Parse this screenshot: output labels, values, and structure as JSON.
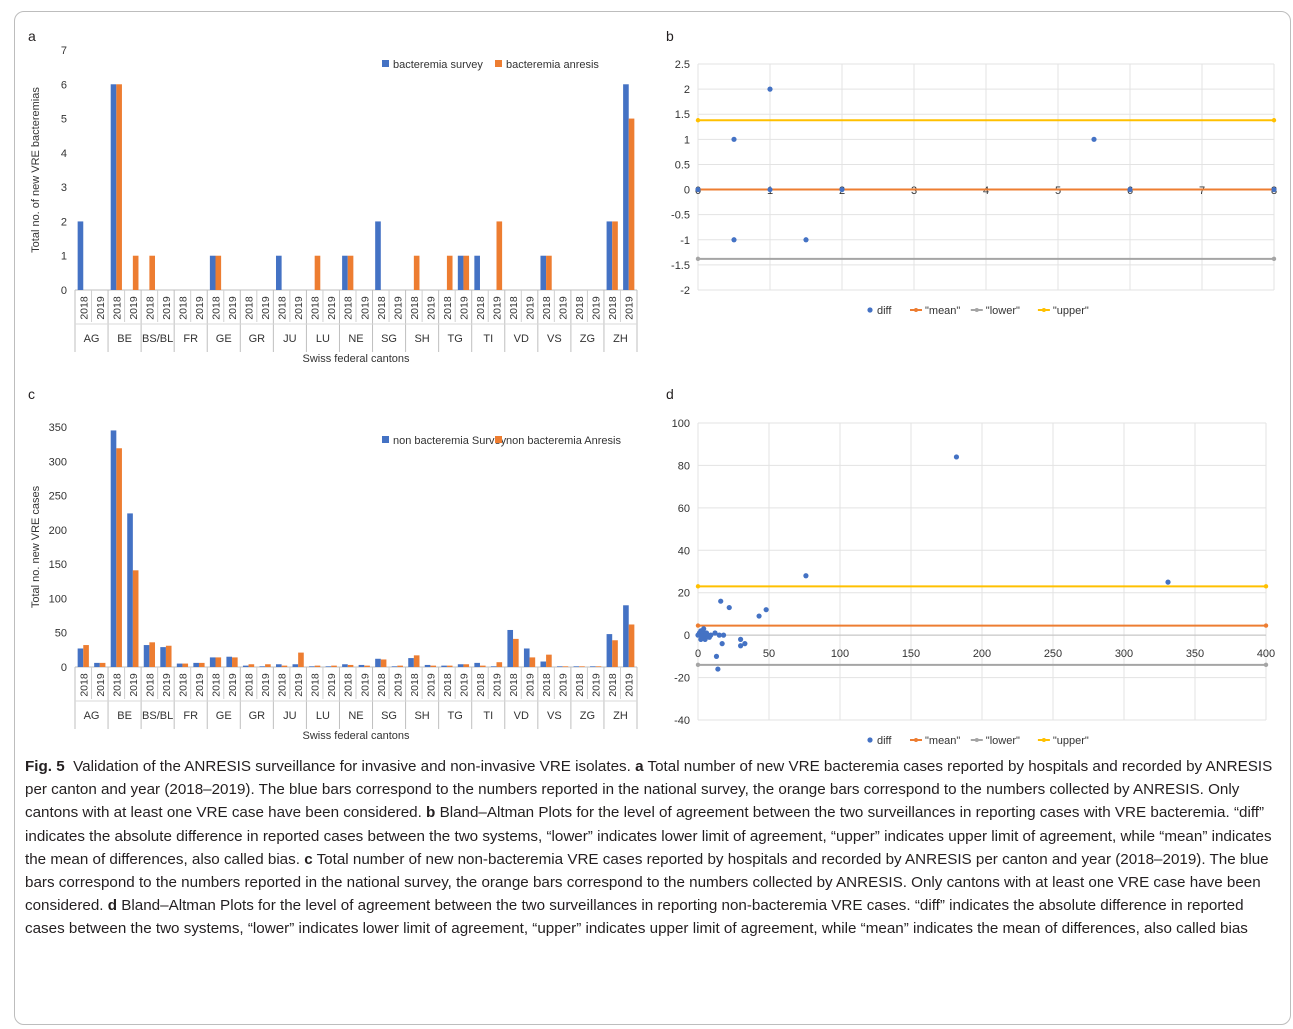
{
  "panels": {
    "a": {
      "label": "a",
      "chart_data": {
        "type": "bar",
        "ylabel": "Total no. of new VRE bacteremias",
        "xlabel": "Swiss federal cantons",
        "ylim": [
          0,
          7
        ],
        "yticks": [
          0,
          1,
          2,
          3,
          4,
          5,
          6,
          7
        ],
        "groups": [
          "AG",
          "BE",
          "BS/BL",
          "FR",
          "GE",
          "GR",
          "JU",
          "LU",
          "NE",
          "SG",
          "SH",
          "TG",
          "TI",
          "VD",
          "VS",
          "ZG",
          "ZH"
        ],
        "years": [
          "2018",
          "2019"
        ],
        "series": [
          {
            "name": "bacteremia survey",
            "color": "#4472c4",
            "values": [
              [
                2,
                0
              ],
              [
                6,
                0
              ],
              [
                0,
                0
              ],
              [
                0,
                0
              ],
              [
                1,
                0
              ],
              [
                0,
                0
              ],
              [
                1,
                0
              ],
              [
                0,
                0
              ],
              [
                1,
                0
              ],
              [
                2,
                0
              ],
              [
                0,
                0
              ],
              [
                0,
                1
              ],
              [
                1,
                0
              ],
              [
                0,
                0
              ],
              [
                1,
                0
              ],
              [
                0,
                0
              ],
              [
                2,
                6
              ]
            ]
          },
          {
            "name": "bacteremia anresis",
            "color": "#ed7d31",
            "values": [
              [
                0,
                0
              ],
              [
                6,
                1
              ],
              [
                1,
                0
              ],
              [
                0,
                0
              ],
              [
                1,
                0
              ],
              [
                0,
                0
              ],
              [
                0,
                0
              ],
              [
                1,
                0
              ],
              [
                1,
                0
              ],
              [
                0,
                0
              ],
              [
                1,
                0
              ],
              [
                1,
                1
              ],
              [
                0,
                2
              ],
              [
                0,
                0
              ],
              [
                1,
                0
              ],
              [
                0,
                0
              ],
              [
                2,
                5
              ]
            ]
          }
        ],
        "legend_position": "top-right",
        "grid": false
      }
    },
    "b": {
      "label": "b",
      "chart_data": {
        "type": "scatter",
        "xlim": [
          0,
          8
        ],
        "ylim": [
          -2,
          2.5
        ],
        "xticks": [
          "0",
          "1",
          "2",
          "3",
          "4",
          "5",
          "6",
          "7",
          "8"
        ],
        "yticks": [
          "-2",
          "-1.5",
          "-1",
          "-0.5",
          "0",
          "0.5",
          "1",
          "1.5",
          "2",
          "2.5"
        ],
        "points": [
          [
            0,
            0
          ],
          [
            0.5,
            1
          ],
          [
            0.5,
            -1
          ],
          [
            1,
            2
          ],
          [
            1,
            0
          ],
          [
            1.5,
            -1
          ],
          [
            2,
            0
          ],
          [
            5.5,
            1
          ],
          [
            6,
            0
          ],
          [
            8,
            0
          ]
        ],
        "lines": [
          {
            "name": "\"mean\"",
            "y": 0,
            "color": "#ed7d31"
          },
          {
            "name": "\"lower\"",
            "y": -1.38,
            "color": "#a5a5a5"
          },
          {
            "name": "\"upper\"",
            "y": 1.38,
            "color": "#ffc000"
          }
        ],
        "series_name": "diff",
        "point_color": "#4472c4",
        "legend_position": "bottom",
        "grid": true
      }
    },
    "c": {
      "label": "c",
      "chart_data": {
        "type": "bar",
        "ylabel": "Total no. new VRE cases",
        "xlabel": "Swiss federal cantons",
        "ylim": [
          0,
          350
        ],
        "yticks": [
          0,
          50,
          100,
          150,
          200,
          250,
          300,
          350
        ],
        "groups": [
          "AG",
          "BE",
          "BS/BL",
          "FR",
          "GE",
          "GR",
          "JU",
          "LU",
          "NE",
          "SG",
          "SH",
          "TG",
          "TI",
          "VD",
          "VS",
          "ZG",
          "ZH"
        ],
        "years": [
          "2018",
          "2019"
        ],
        "series": [
          {
            "name": "non bacteremia Survey",
            "color": "#4472c4",
            "values": [
              [
                27,
                6
              ],
              [
                345,
                224
              ],
              [
                32,
                29
              ],
              [
                5,
                6
              ],
              [
                14,
                15
              ],
              [
                2,
                1
              ],
              [
                4,
                4
              ],
              [
                1,
                1
              ],
              [
                4,
                3
              ],
              [
                12,
                1
              ],
              [
                13,
                3
              ],
              [
                2,
                4
              ],
              [
                6,
                1
              ],
              [
                54,
                27
              ],
              [
                8,
                1
              ],
              [
                1,
                1
              ],
              [
                48,
                90
              ]
            ]
          },
          {
            "name": "non bacteremia Anresis",
            "color": "#ed7d31",
            "values": [
              [
                32,
                6
              ],
              [
                319,
                141
              ],
              [
                36,
                31
              ],
              [
                5,
                6
              ],
              [
                14,
                14
              ],
              [
                4,
                4
              ],
              [
                2,
                21
              ],
              [
                2,
                2
              ],
              [
                3,
                2
              ],
              [
                11,
                2
              ],
              [
                17,
                2
              ],
              [
                2,
                4
              ],
              [
                2,
                7
              ],
              [
                41,
                14
              ],
              [
                18,
                1
              ],
              [
                1,
                1
              ],
              [
                39,
                62
              ]
            ]
          }
        ],
        "legend_position": "top-right",
        "grid": false
      }
    },
    "d": {
      "label": "d",
      "chart_data": {
        "type": "scatter",
        "xlim": [
          0,
          400
        ],
        "ylim": [
          -40,
          100
        ],
        "xticks": [
          "0",
          "50",
          "100",
          "150",
          "200",
          "250",
          "300",
          "350",
          "400"
        ],
        "yticks": [
          "-40",
          "-20",
          "0",
          "20",
          "40",
          "60",
          "80",
          "100"
        ],
        "points": [
          [
            0,
            0
          ],
          [
            1,
            1
          ],
          [
            2,
            -2
          ],
          [
            2,
            2
          ],
          [
            3,
            0
          ],
          [
            3,
            -1
          ],
          [
            4,
            1
          ],
          [
            4,
            3
          ],
          [
            5,
            0
          ],
          [
            5,
            -2
          ],
          [
            6,
            1
          ],
          [
            7,
            0
          ],
          [
            8,
            -1
          ],
          [
            9,
            0
          ],
          [
            12,
            1
          ],
          [
            13,
            -10
          ],
          [
            14,
            -16
          ],
          [
            15,
            0
          ],
          [
            16,
            16
          ],
          [
            17,
            -4
          ],
          [
            18,
            0
          ],
          [
            22,
            13
          ],
          [
            30,
            -2
          ],
          [
            30,
            -5
          ],
          [
            33,
            -4
          ],
          [
            43,
            9
          ],
          [
            48,
            12
          ],
          [
            76,
            28
          ],
          [
            182,
            84
          ],
          [
            331,
            25
          ]
        ],
        "lines": [
          {
            "name": "\"mean\"",
            "y": 4.5,
            "color": "#ed7d31"
          },
          {
            "name": "\"lower\"",
            "y": -14,
            "color": "#a5a5a5"
          },
          {
            "name": "\"upper\"",
            "y": 23,
            "color": "#ffc000"
          }
        ],
        "series_name": "diff",
        "point_color": "#4472c4",
        "legend_position": "bottom",
        "grid": true
      }
    }
  },
  "caption": {
    "fig_label": "Fig. 5",
    "title": "Validation of the ANRESIS surveillance for invasive and non-invasive VRE isolates.",
    "a_label": "a",
    "a_text": "Total number of new VRE bacteremia cases reported by hospitals and recorded by ANRESIS per canton and year (2018–2019). The blue bars correspond to the numbers reported in the national survey, the orange bars correspond to the numbers collected by ANRESIS. Only cantons with at least one VRE case have been considered.",
    "b_label": "b",
    "b_text": "Bland–Altman Plots for the level of agreement between the two surveillances in reporting cases with VRE bacteremia. “diff” indicates the absolute difference in reported cases between the two systems, “lower” indicates lower limit of agreement, “upper” indicates upper limit of agreement, while “mean” indicates the mean of differences, also called bias.",
    "c_label": "c",
    "c_text": "Total number of new non-bacteremia VRE cases reported by hospitals and recorded by ANRESIS per canton and year (2018–2019). The blue bars correspond to the numbers reported in the national survey, the orange bars correspond to the numbers collected by ANRESIS. Only cantons with at least one VRE case have been considered.",
    "d_label": "d",
    "d_text": "Bland–Altman Plots for the level of agreement between the two surveillances in reporting non-bacteremia VRE cases. “diff” indicates the absolute difference in reported cases between the two systems, “lower” indicates lower limit of agreement, “upper” indicates upper limit of agreement, while “mean” indicates the mean of differences, also called bias"
  }
}
